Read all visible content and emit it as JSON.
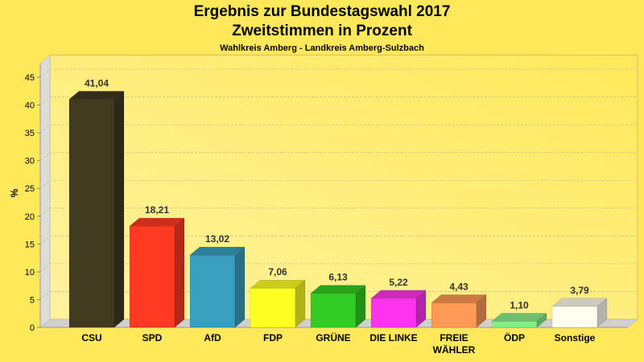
{
  "chart_data": {
    "type": "bar",
    "title": "Ergebnis zur Bundestagswahl 2017",
    "subtitle": "Zweitstimmen in Prozent",
    "subsubtitle": "Wahlkreis Amberg - Landkreis Amberg-Sulzbach",
    "xlabel": "",
    "ylabel": "%",
    "ylim": [
      0,
      45
    ],
    "yticks": [
      0,
      5,
      10,
      15,
      20,
      25,
      30,
      35,
      40,
      45
    ],
    "grid": true,
    "categories": [
      "CSU",
      "SPD",
      "AfD",
      "FDP",
      "GRÜNE",
      "DIE LINKE",
      "FREIE WÄHLER",
      "ÖDP",
      "Sonstige"
    ],
    "category_lines": [
      [
        "CSU"
      ],
      [
        "SPD"
      ],
      [
        "AfD"
      ],
      [
        "FDP"
      ],
      [
        "GRÜNE"
      ],
      [
        "DIE LINKE"
      ],
      [
        "FREIE",
        "WÄHLER"
      ],
      [
        "ÖDP"
      ],
      [
        "Sonstige"
      ]
    ],
    "values": [
      41.04,
      18.21,
      13.02,
      7.06,
      6.13,
      5.22,
      4.43,
      1.1,
      3.79
    ],
    "labels": [
      "41,04",
      "18,21",
      "13,02",
      "7,06",
      "6,13",
      "5,22",
      "4,43",
      "1,10",
      "3,79"
    ],
    "colors": [
      "#3f3a20",
      "#ff3a22",
      "#3a9fbf",
      "#ffff22",
      "#33cc22",
      "#ff33ee",
      "#ff9955",
      "#88ee88",
      "#fffff0"
    ]
  }
}
